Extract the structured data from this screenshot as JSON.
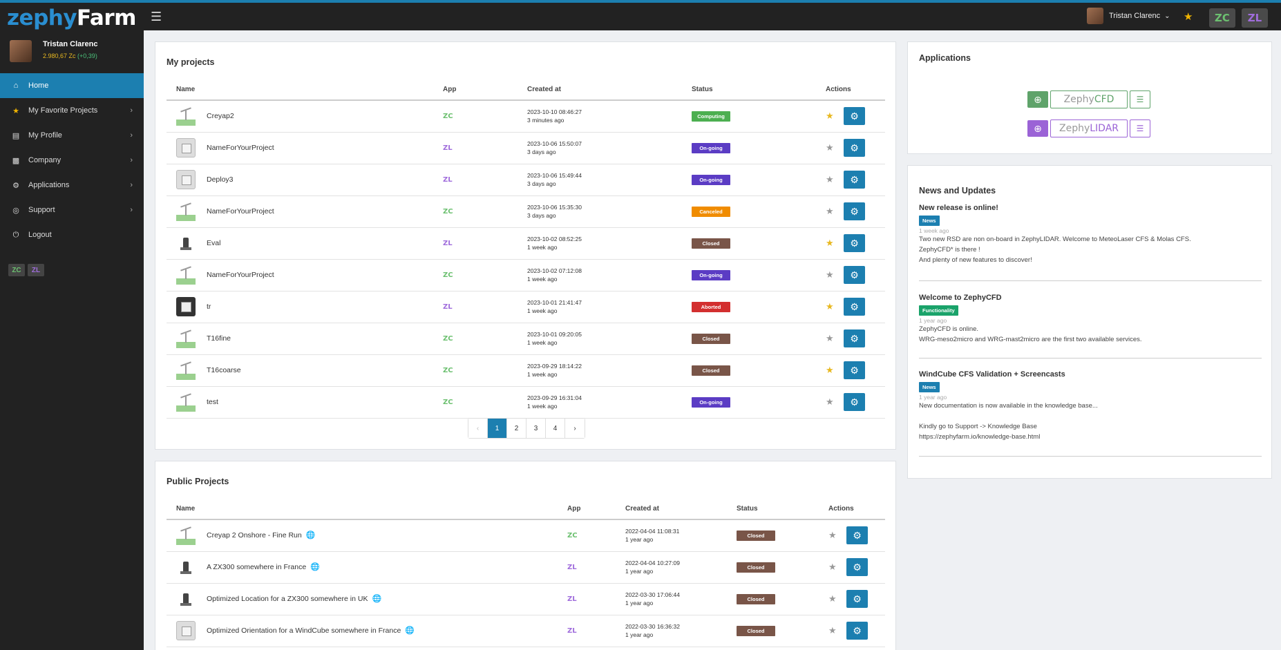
{
  "topbar": {
    "logo_part1": "zephy",
    "logo_part2": "Farm",
    "menu_icon": "hamburger-icon",
    "user_name": "Tristan Clarenc",
    "user_caret": "⌄",
    "app_zc": "ZC",
    "app_zl": "ZL"
  },
  "sidebar": {
    "user_name": "Tristan Clarenc",
    "balance": "2.980,67 Zc",
    "balance_delta": "(+0,39)",
    "items": [
      {
        "label": "Home",
        "icon": "home-icon"
      },
      {
        "label": "My Favorite Projects",
        "icon": "star-icon"
      },
      {
        "label": "My Profile",
        "icon": "profile-icon"
      },
      {
        "label": "Company",
        "icon": "company-icon"
      },
      {
        "label": "Applications",
        "icon": "applications-icon"
      },
      {
        "label": "Support",
        "icon": "support-icon"
      },
      {
        "label": "Logout",
        "icon": "power-icon"
      }
    ],
    "app_zc": "ZC",
    "app_zl": "ZL"
  },
  "my_projects": {
    "title": "My projects",
    "columns": {
      "name": "Name",
      "app": "App",
      "created": "Created at",
      "status": "Status",
      "actions": "Actions"
    },
    "rows": [
      {
        "thumb": "wind",
        "name": "Creyap2",
        "app": "ZC",
        "date": "2023-10-10 08:46:27",
        "ago": "3 minutes ago",
        "status": "Computing",
        "color": "#4caf50",
        "fav": true
      },
      {
        "thumb": "cube",
        "name": "NameForYourProject",
        "app": "ZL",
        "date": "2023-10-06 15:50:07",
        "ago": "3 days ago",
        "status": "On-going",
        "color": "#5b3cc4",
        "fav": false
      },
      {
        "thumb": "cube",
        "name": "Deploy3",
        "app": "ZL",
        "date": "2023-10-06 15:49:44",
        "ago": "3 days ago",
        "status": "On-going",
        "color": "#5b3cc4",
        "fav": false
      },
      {
        "thumb": "wind",
        "name": "NameForYourProject",
        "app": "ZC",
        "date": "2023-10-06 15:35:30",
        "ago": "3 days ago",
        "status": "Canceled",
        "color": "#f08c00",
        "fav": false
      },
      {
        "thumb": "lidar",
        "name": "Eval",
        "app": "ZL",
        "date": "2023-10-02 08:52:25",
        "ago": "1 week ago",
        "status": "Closed",
        "color": "#795548",
        "fav": true
      },
      {
        "thumb": "wind",
        "name": "NameForYourProject",
        "app": "ZC",
        "date": "2023-10-02 07:12:08",
        "ago": "1 week ago",
        "status": "On-going",
        "color": "#5b3cc4",
        "fav": false
      },
      {
        "thumb": "dark",
        "name": "tr",
        "app": "ZL",
        "date": "2023-10-01 21:41:47",
        "ago": "1 week ago",
        "status": "Aborted",
        "color": "#d32f2f",
        "fav": true
      },
      {
        "thumb": "wind",
        "name": "T16fine",
        "app": "ZC",
        "date": "2023-10-01 09:20:05",
        "ago": "1 week ago",
        "status": "Closed",
        "color": "#795548",
        "fav": false
      },
      {
        "thumb": "wind",
        "name": "T16coarse",
        "app": "ZC",
        "date": "2023-09-29 18:14:22",
        "ago": "1 week ago",
        "status": "Closed",
        "color": "#795548",
        "fav": true
      },
      {
        "thumb": "wind",
        "name": "test",
        "app": "ZC",
        "date": "2023-09-29 16:31:04",
        "ago": "1 week ago",
        "status": "On-going",
        "color": "#5b3cc4",
        "fav": false
      }
    ],
    "pagination": {
      "prev": "‹",
      "pages": [
        "1",
        "2",
        "3",
        "4"
      ],
      "next": "›",
      "current": "1"
    }
  },
  "public_projects": {
    "title": "Public Projects",
    "columns": {
      "name": "Name",
      "app": "App",
      "created": "Created at",
      "status": "Status",
      "actions": "Actions"
    },
    "rows": [
      {
        "thumb": "wind",
        "name": "Creyap 2 Onshore - Fine Run",
        "app": "ZC",
        "date": "2022-04-04 11:08:31",
        "ago": "1 year ago",
        "status": "Closed",
        "color": "#795548",
        "fav": false
      },
      {
        "thumb": "lidar",
        "name": "A ZX300 somewhere in France",
        "app": "ZL",
        "date": "2022-04-04 10:27:09",
        "ago": "1 year ago",
        "status": "Closed",
        "color": "#795548",
        "fav": false
      },
      {
        "thumb": "lidar",
        "name": "Optimized Location for a ZX300 somewhere in UK",
        "app": "ZL",
        "date": "2022-03-30 17:06:44",
        "ago": "1 year ago",
        "status": "Closed",
        "color": "#795548",
        "fav": false
      },
      {
        "thumb": "cube",
        "name": "Optimized Orientation for a WindCube somewhere in France",
        "app": "ZL",
        "date": "2022-03-30 16:36:32",
        "ago": "1 year ago",
        "status": "Closed",
        "color": "#795548",
        "fav": false
      }
    ]
  },
  "applications": {
    "title": "Applications",
    "items": [
      {
        "prefix": "Zephy",
        "suffix": "CFD",
        "color": "#5fa36a"
      },
      {
        "prefix": "Zephy",
        "suffix": "LIDAR",
        "color": "#9b63d6"
      }
    ]
  },
  "news": {
    "title": "News and Updates",
    "items": [
      {
        "title": "New release is online!",
        "tag": "News",
        "tag_color": "#1c7fb0",
        "time": "1 week ago",
        "lines": [
          "Two new RSD are non on-board in ZephyLIDAR. Welcome to MeteoLaser CFS & Molas CFS.",
          "ZephyCFD* is there !",
          "And plenty of new features to discover!"
        ]
      },
      {
        "title": "Welcome to ZephyCFD",
        "tag": "Functionality",
        "tag_color": "#1aa36a",
        "time": "1 year ago",
        "lines": [
          "ZephyCFD is online.",
          "WRG-meso2micro and WRG-mast2micro are the first two available services."
        ]
      },
      {
        "title": "WindCube CFS Validation + Screencasts",
        "tag": "News",
        "tag_color": "#1c7fb0",
        "time": "1 year ago",
        "lines": [
          "New documentation is now available in the knowledge base...",
          "",
          "Kindly go to Support -> Knowledge Base",
          "https://zephyfarm.io/knowledge-base.html"
        ]
      }
    ]
  }
}
